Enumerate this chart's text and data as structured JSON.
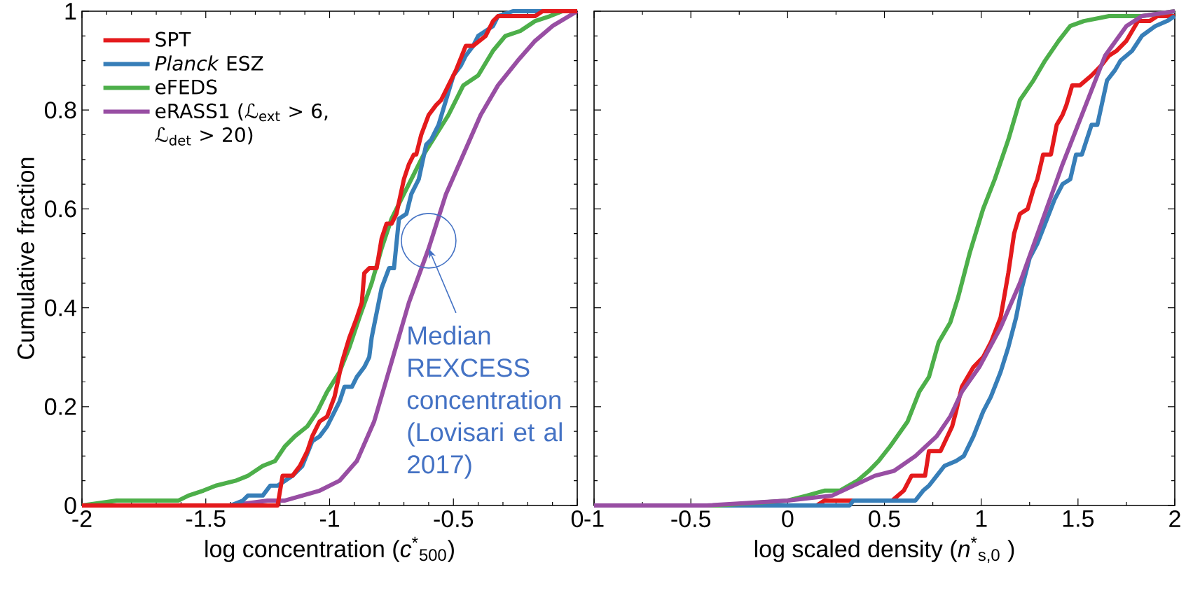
{
  "chart_data": [
    {
      "type": "line",
      "xlabel": "log concentration (*c*$^{*}$$_{500}$)",
      "ylabel": "Cumulative fraction",
      "xlim": [
        -2,
        0
      ],
      "ylim": [
        0,
        1
      ],
      "xticks": [
        -2,
        -1.5,
        -1,
        -0.5,
        0
      ],
      "yticks": [
        0,
        0.2,
        0.4,
        0.6,
        0.8,
        1
      ],
      "legend": "top left",
      "marker": "none",
      "annotations": [
        {
          "text": "Median REXCESS concentration (Lovisari et al 2017)",
          "x": -0.6,
          "y": 0.52
        }
      ],
      "series": [
        {
          "name": "SPT",
          "color": "#e41a1c",
          "x": [
            -2,
            -1.21,
            -1.19,
            -1.15,
            -1.12,
            -1.09,
            -1.07,
            -1.04,
            -1.01,
            -0.98,
            -0.95,
            -0.92,
            -0.89,
            -0.87,
            -0.86,
            -0.84,
            -0.81,
            -0.79,
            -0.77,
            -0.75,
            -0.73,
            -0.7,
            -0.68,
            -0.66,
            -0.65,
            -0.63,
            -0.6,
            -0.57,
            -0.55,
            -0.52,
            -0.49,
            -0.45,
            -0.42,
            -0.37,
            -0.34,
            -0.32,
            -0.17,
            -0.14,
            0
          ],
          "values": [
            0,
            0,
            0.06,
            0.06,
            0.08,
            0.11,
            0.14,
            0.17,
            0.18,
            0.22,
            0.29,
            0.34,
            0.38,
            0.41,
            0.47,
            0.48,
            0.48,
            0.54,
            0.57,
            0.57,
            0.59,
            0.66,
            0.69,
            0.71,
            0.71,
            0.75,
            0.79,
            0.81,
            0.82,
            0.85,
            0.88,
            0.93,
            0.93,
            0.95,
            0.98,
            0.99,
            0.99,
            1,
            1
          ]
        },
        {
          "name": "*Planck* ESZ",
          "color": "#377eb8",
          "x": [
            -2,
            -1.4,
            -1.35,
            -1.33,
            -1.27,
            -1.24,
            -1.21,
            -1.18,
            -1.15,
            -1.11,
            -1.07,
            -1.04,
            -1.01,
            -0.98,
            -0.96,
            -0.94,
            -0.91,
            -0.89,
            -0.86,
            -0.84,
            -0.83,
            -0.81,
            -0.79,
            -0.76,
            -0.74,
            -0.72,
            -0.69,
            -0.67,
            -0.64,
            -0.61,
            -0.59,
            -0.56,
            -0.53,
            -0.5,
            -0.47,
            -0.45,
            -0.42,
            -0.4,
            -0.37,
            -0.34,
            -0.32,
            -0.26,
            0
          ],
          "values": [
            0,
            0,
            0.01,
            0.02,
            0.02,
            0.04,
            0.04,
            0.05,
            0.06,
            0.08,
            0.13,
            0.14,
            0.16,
            0.19,
            0.21,
            0.24,
            0.24,
            0.26,
            0.28,
            0.3,
            0.34,
            0.39,
            0.44,
            0.48,
            0.48,
            0.58,
            0.59,
            0.63,
            0.66,
            0.73,
            0.74,
            0.77,
            0.82,
            0.87,
            0.89,
            0.91,
            0.93,
            0.95,
            0.96,
            0.97,
            0.99,
            1,
            1
          ]
        },
        {
          "name": "eFEDS",
          "color": "#4daf4a",
          "x": [
            -2,
            -1.86,
            -1.76,
            -1.69,
            -1.61,
            -1.57,
            -1.51,
            -1.46,
            -1.38,
            -1.33,
            -1.27,
            -1.22,
            -1.18,
            -1.14,
            -1.09,
            -1.05,
            -1.01,
            -0.96,
            -0.92,
            -0.88,
            -0.83,
            -0.79,
            -0.75,
            -0.7,
            -0.66,
            -0.62,
            -0.57,
            -0.52,
            -0.46,
            -0.4,
            -0.34,
            -0.29,
            -0.23,
            -0.17,
            -0.11,
            -0.06,
            0
          ],
          "values": [
            0,
            0.01,
            0.01,
            0.01,
            0.01,
            0.02,
            0.03,
            0.04,
            0.05,
            0.06,
            0.08,
            0.09,
            0.12,
            0.14,
            0.16,
            0.19,
            0.23,
            0.27,
            0.32,
            0.38,
            0.45,
            0.52,
            0.58,
            0.63,
            0.67,
            0.71,
            0.75,
            0.79,
            0.85,
            0.87,
            0.92,
            0.95,
            0.96,
            0.98,
            0.99,
            1,
            1
          ]
        },
        {
          "name": "eRASS1 (ℒ$_{ext}$ > 6, ℒ$_{det}$ > 20)",
          "color": "#984ea3",
          "x": [
            -2,
            -1.4,
            -1.25,
            -1.18,
            -1.11,
            -1.04,
            -0.96,
            -0.89,
            -0.82,
            -0.75,
            -0.68,
            -0.6,
            -0.53,
            -0.46,
            -0.39,
            -0.32,
            -0.24,
            -0.17,
            -0.1,
            0
          ],
          "values": [
            0,
            0,
            0.01,
            0.01,
            0.02,
            0.03,
            0.05,
            0.09,
            0.17,
            0.29,
            0.41,
            0.52,
            0.63,
            0.71,
            0.79,
            0.85,
            0.9,
            0.94,
            0.97,
            1
          ]
        }
      ]
    },
    {
      "type": "line",
      "xlabel": "log scaled density (*n*$^{*}$$_{s,0}$ )",
      "xlim": [
        -1,
        2
      ],
      "ylim": [
        0,
        1
      ],
      "xticks": [
        -1,
        -0.5,
        0,
        0.5,
        1,
        1.5,
        2
      ],
      "yticks": [
        0,
        0.2,
        0.4,
        0.6,
        0.8,
        1
      ],
      "tick_labels": "x",
      "marker": "none",
      "series": [
        {
          "color": "#984ea3",
          "x": [
            -1,
            -0.42,
            0,
            0.23,
            0.45,
            0.55,
            0.66,
            0.77,
            0.84,
            0.9,
            0.99,
            1.1,
            1.2,
            1.31,
            1.42,
            1.53,
            1.64,
            1.75,
            1.83,
            2
          ],
          "values": [
            0,
            0,
            0.01,
            0.02,
            0.06,
            0.07,
            0.1,
            0.14,
            0.18,
            0.23,
            0.28,
            0.36,
            0.45,
            0.57,
            0.69,
            0.8,
            0.91,
            0.97,
            0.99,
            1
          ]
        },
        {
          "color": "#4daf4a",
          "x": [
            -1,
            -0.36,
            0,
            0.1,
            0.19,
            0.27,
            0.36,
            0.42,
            0.47,
            0.53,
            0.62,
            0.68,
            0.73,
            0.78,
            0.84,
            0.88,
            0.94,
            1.01,
            1.07,
            1.14,
            1.2,
            1.27,
            1.33,
            1.4,
            1.46,
            1.53,
            1.66,
            1.83,
            2
          ],
          "values": [
            0,
            0,
            0.01,
            0.02,
            0.03,
            0.03,
            0.05,
            0.07,
            0.09,
            0.12,
            0.17,
            0.23,
            0.26,
            0.33,
            0.37,
            0.42,
            0.51,
            0.6,
            0.66,
            0.74,
            0.82,
            0.86,
            0.9,
            0.94,
            0.97,
            0.98,
            0.99,
            0.99,
            1
          ]
        },
        {
          "color": "#377eb8",
          "x": [
            -1,
            0.32,
            0.34,
            0.66,
            0.7,
            0.73,
            0.77,
            0.81,
            0.87,
            0.91,
            0.96,
            1.01,
            1.05,
            1.1,
            1.14,
            1.18,
            1.21,
            1.25,
            1.29,
            1.33,
            1.38,
            1.42,
            1.46,
            1.49,
            1.52,
            1.57,
            1.6,
            1.65,
            1.69,
            1.72,
            1.78,
            1.83,
            1.9,
            1.96,
            2
          ],
          "values": [
            0,
            0,
            0.01,
            0.01,
            0.03,
            0.04,
            0.06,
            0.08,
            0.09,
            0.1,
            0.14,
            0.19,
            0.22,
            0.27,
            0.32,
            0.38,
            0.44,
            0.5,
            0.53,
            0.57,
            0.62,
            0.65,
            0.66,
            0.71,
            0.71,
            0.77,
            0.77,
            0.86,
            0.88,
            0.9,
            0.92,
            0.95,
            0.97,
            0.98,
            0.99
          ]
        },
        {
          "color": "#e41a1c",
          "x": [
            -1,
            0.15,
            0.19,
            0.54,
            0.6,
            0.64,
            0.71,
            0.73,
            0.79,
            0.85,
            0.87,
            0.9,
            0.96,
            1.01,
            1.05,
            1.1,
            1.14,
            1.17,
            1.2,
            1.24,
            1.27,
            1.29,
            1.32,
            1.36,
            1.39,
            1.42,
            1.44,
            1.47,
            1.51,
            1.57,
            1.62,
            1.66,
            1.7,
            1.75,
            1.78,
            1.81,
            1.87,
            1.91,
            2
          ],
          "values": [
            0,
            0,
            0.01,
            0.01,
            0.03,
            0.06,
            0.06,
            0.11,
            0.11,
            0.16,
            0.19,
            0.24,
            0.28,
            0.3,
            0.33,
            0.38,
            0.47,
            0.55,
            0.59,
            0.6,
            0.64,
            0.66,
            0.71,
            0.71,
            0.77,
            0.79,
            0.81,
            0.85,
            0.85,
            0.87,
            0.89,
            0.91,
            0.92,
            0.94,
            0.96,
            0.98,
            0.98,
            0.99,
            0.99
          ]
        }
      ]
    }
  ]
}
